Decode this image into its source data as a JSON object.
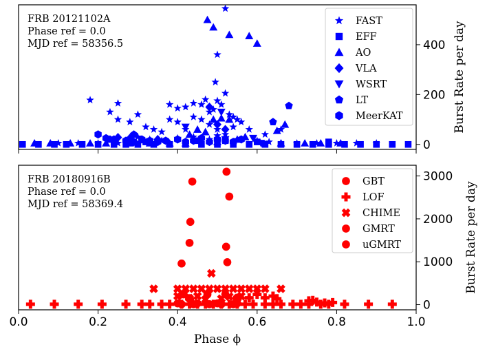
{
  "chart_data": [
    {
      "type": "scatter",
      "color": "#0000ff",
      "annotation": [
        "FRB 20121102A",
        "Phase ref = 0.0",
        "MJD ref = 58356.5"
      ],
      "xlabel": "",
      "ylabel": "Burst Rate per day",
      "xlim": [
        0.0,
        1.0
      ],
      "ylim": [
        -20,
        560
      ],
      "yticks": [
        0,
        200,
        400
      ],
      "legend_position": "top-right",
      "series": [
        {
          "name": "FAST",
          "marker": "star",
          "points": [
            [
              0.52,
              545
            ],
            [
              0.5,
              360
            ],
            [
              0.495,
              250
            ],
            [
              0.52,
              205
            ],
            [
              0.18,
              178
            ],
            [
              0.25,
              165
            ],
            [
              0.38,
              160
            ],
            [
              0.4,
              145
            ],
            [
              0.42,
              150
            ],
            [
              0.44,
              165
            ],
            [
              0.46,
              160
            ],
            [
              0.47,
              180
            ],
            [
              0.48,
              130
            ],
            [
              0.49,
              140
            ],
            [
              0.5,
              175
            ],
            [
              0.51,
              160
            ],
            [
              0.53,
              120
            ],
            [
              0.54,
              110
            ],
            [
              0.55,
              100
            ],
            [
              0.56,
              90
            ],
            [
              0.58,
              60
            ],
            [
              0.62,
              40
            ],
            [
              0.64,
              90
            ],
            [
              0.66,
              60
            ],
            [
              0.23,
              130
            ],
            [
              0.25,
              100
            ],
            [
              0.28,
              90
            ],
            [
              0.3,
              120
            ],
            [
              0.32,
              70
            ],
            [
              0.34,
              60
            ],
            [
              0.36,
              50
            ],
            [
              0.38,
              100
            ],
            [
              0.4,
              90
            ],
            [
              0.42,
              60
            ],
            [
              0.44,
              110
            ],
            [
              0.46,
              100
            ],
            [
              0.48,
              80
            ],
            [
              0.5,
              60
            ],
            [
              0.52,
              40
            ],
            [
              0.54,
              70
            ],
            [
              0.3,
              30
            ],
            [
              0.33,
              20
            ],
            [
              0.36,
              15
            ],
            [
              0.4,
              25
            ],
            [
              0.44,
              30
            ],
            [
              0.48,
              20
            ],
            [
              0.5,
              35
            ],
            [
              0.55,
              20
            ],
            [
              0.6,
              15
            ],
            [
              0.63,
              10
            ],
            [
              0.1,
              5
            ],
            [
              0.15,
              5
            ],
            [
              0.2,
              5
            ],
            [
              0.25,
              5
            ],
            [
              0.7,
              5
            ],
            [
              0.75,
              5
            ],
            [
              0.8,
              5
            ],
            [
              0.85,
              5
            ],
            [
              0.9,
              5
            ]
          ]
        },
        {
          "name": "EFF",
          "marker": "square",
          "points": [
            [
              0.01,
              0
            ],
            [
              0.05,
              0
            ],
            [
              0.09,
              0
            ],
            [
              0.12,
              0
            ],
            [
              0.16,
              0
            ],
            [
              0.2,
              0
            ],
            [
              0.24,
              0
            ],
            [
              0.27,
              0
            ],
            [
              0.3,
              0
            ],
            [
              0.34,
              0
            ],
            [
              0.38,
              0
            ],
            [
              0.42,
              0
            ],
            [
              0.46,
              0
            ],
            [
              0.5,
              0
            ],
            [
              0.54,
              0
            ],
            [
              0.58,
              0
            ],
            [
              0.62,
              0
            ],
            [
              0.66,
              0
            ],
            [
              0.7,
              0
            ],
            [
              0.74,
              0
            ],
            [
              0.78,
              0
            ],
            [
              0.82,
              0
            ],
            [
              0.86,
              0
            ],
            [
              0.9,
              0
            ],
            [
              0.94,
              0
            ],
            [
              0.98,
              0
            ],
            [
              0.78,
              10
            ],
            [
              0.32,
              10
            ],
            [
              0.45,
              15
            ],
            [
              0.52,
              15
            ],
            [
              0.6,
              10
            ]
          ]
        },
        {
          "name": "AO",
          "marker": "triangle-up",
          "points": [
            [
              0.475,
              500
            ],
            [
              0.49,
              470
            ],
            [
              0.53,
              440
            ],
            [
              0.58,
              435
            ],
            [
              0.6,
              405
            ],
            [
              0.5,
              10
            ],
            [
              0.55,
              20
            ],
            [
              0.47,
              50
            ],
            [
              0.49,
              100
            ],
            [
              0.51,
              105
            ],
            [
              0.53,
              100
            ],
            [
              0.45,
              60
            ],
            [
              0.43,
              40
            ],
            [
              0.57,
              30
            ],
            [
              0.65,
              55
            ],
            [
              0.67,
              80
            ],
            [
              0.04,
              5
            ],
            [
              0.08,
              5
            ],
            [
              0.13,
              5
            ],
            [
              0.18,
              5
            ],
            [
              0.22,
              5
            ],
            [
              0.28,
              5
            ],
            [
              0.33,
              5
            ],
            [
              0.38,
              5
            ],
            [
              0.42,
              5
            ],
            [
              0.66,
              5
            ],
            [
              0.72,
              5
            ],
            [
              0.76,
              5
            ],
            [
              0.81,
              5
            ]
          ]
        },
        {
          "name": "VLA",
          "marker": "diamond",
          "points": [
            [
              0.25,
              28
            ],
            [
              0.28,
              25
            ],
            [
              0.48,
              150
            ],
            [
              0.5,
              80
            ],
            [
              0.52,
              60
            ],
            [
              0.35,
              20
            ]
          ]
        },
        {
          "name": "WSRT",
          "marker": "triangle-down",
          "points": [
            [
              0.42,
              70
            ],
            [
              0.51,
              130
            ],
            [
              0.59,
              25
            ],
            [
              0.52,
              20
            ],
            [
              0.61,
              5
            ]
          ]
        },
        {
          "name": "LT",
          "marker": "pentagon",
          "points": [
            [
              0.68,
              155
            ],
            [
              0.64,
              90
            ],
            [
              0.23,
              20
            ],
            [
              0.29,
              40
            ]
          ]
        },
        {
          "name": "MeerKAT",
          "marker": "hexagon",
          "points": [
            [
              0.2,
              40
            ],
            [
              0.22,
              25
            ],
            [
              0.24,
              20
            ],
            [
              0.27,
              15
            ],
            [
              0.29,
              10
            ],
            [
              0.31,
              20
            ],
            [
              0.33,
              15
            ],
            [
              0.35,
              10
            ],
            [
              0.37,
              15
            ],
            [
              0.4,
              20
            ],
            [
              0.42,
              10
            ],
            [
              0.44,
              15
            ],
            [
              0.46,
              25
            ],
            [
              0.48,
              10
            ],
            [
              0.5,
              20
            ],
            [
              0.52,
              15
            ],
            [
              0.54,
              10
            ],
            [
              0.56,
              20
            ]
          ]
        }
      ]
    },
    {
      "type": "scatter",
      "color": "#ff0000",
      "annotation": [
        "FRB 20180916B",
        "Phase ref = 0.0",
        "MJD ref = 58369.4"
      ],
      "xlabel": "Phase ϕ",
      "ylabel": "Burst Rate per day",
      "xlim": [
        0.0,
        1.0
      ],
      "ylim": [
        -120,
        3250
      ],
      "yticks": [
        0,
        1000,
        2000,
        3000
      ],
      "xticks": [
        "0.0",
        "0.2",
        "0.4",
        "0.6",
        "0.8",
        "1.0"
      ],
      "legend_position": "top-right",
      "series": [
        {
          "name": "GBT",
          "marker": "circle",
          "points": [
            [
              0.523,
              3100
            ],
            [
              0.437,
              2870
            ],
            [
              0.53,
              2520
            ],
            [
              0.432,
              1930
            ],
            [
              0.43,
              1440
            ],
            [
              0.522,
              1350
            ],
            [
              0.525,
              990
            ],
            [
              0.41,
              960
            ],
            [
              0.415,
              240
            ],
            [
              0.475,
              240
            ],
            [
              0.52,
              240
            ]
          ]
        },
        {
          "name": "LOF",
          "marker": "plus",
          "points": [
            [
              0.03,
              10
            ],
            [
              0.09,
              10
            ],
            [
              0.15,
              10
            ],
            [
              0.21,
              10
            ],
            [
              0.27,
              10
            ],
            [
              0.31,
              10
            ],
            [
              0.33,
              10
            ],
            [
              0.36,
              10
            ],
            [
              0.38,
              10
            ],
            [
              0.41,
              10
            ],
            [
              0.43,
              10
            ],
            [
              0.45,
              10
            ],
            [
              0.47,
              10
            ],
            [
              0.49,
              10
            ],
            [
              0.51,
              10
            ],
            [
              0.53,
              10
            ],
            [
              0.55,
              10
            ],
            [
              0.57,
              10
            ],
            [
              0.59,
              10
            ],
            [
              0.62,
              10
            ],
            [
              0.64,
              10
            ],
            [
              0.66,
              10
            ],
            [
              0.69,
              10
            ],
            [
              0.71,
              10
            ],
            [
              0.73,
              10
            ],
            [
              0.76,
              10
            ],
            [
              0.78,
              10
            ],
            [
              0.82,
              10
            ],
            [
              0.88,
              10
            ],
            [
              0.94,
              10
            ],
            [
              0.55,
              150
            ],
            [
              0.58,
              160
            ],
            [
              0.6,
              240
            ],
            [
              0.62,
              160
            ],
            [
              0.64,
              200
            ],
            [
              0.65,
              140
            ],
            [
              0.73,
              90
            ],
            [
              0.74,
              100
            ],
            [
              0.75,
              60
            ],
            [
              0.77,
              40
            ],
            [
              0.79,
              50
            ],
            [
              0.43,
              140
            ]
          ]
        },
        {
          "name": "CHIME",
          "marker": "cross",
          "points": [
            [
              0.34,
              370
            ],
            [
              0.4,
              370
            ],
            [
              0.42,
              370
            ],
            [
              0.44,
              370
            ],
            [
              0.46,
              370
            ],
            [
              0.48,
              370
            ],
            [
              0.5,
              370
            ],
            [
              0.52,
              370
            ],
            [
              0.54,
              370
            ],
            [
              0.56,
              370
            ],
            [
              0.58,
              370
            ],
            [
              0.6,
              370
            ],
            [
              0.62,
              370
            ],
            [
              0.66,
              370
            ],
            [
              0.485,
              730
            ],
            [
              0.4,
              200
            ],
            [
              0.43,
              150
            ],
            [
              0.47,
              120
            ],
            [
              0.51,
              140
            ],
            [
              0.55,
              150
            ],
            [
              0.56,
              200
            ],
            [
              0.53,
              190
            ],
            [
              0.45,
              200
            ]
          ]
        },
        {
          "name": "GMRT",
          "marker": "circle",
          "points": [
            [
              0.41,
              10
            ],
            [
              0.44,
              10
            ],
            [
              0.48,
              10
            ],
            [
              0.51,
              10
            ],
            [
              0.54,
              10
            ]
          ]
        },
        {
          "name": "uGMRT",
          "marker": "circle",
          "points": [
            [
              0.4,
              30
            ],
            [
              0.45,
              30
            ],
            [
              0.5,
              30
            ],
            [
              0.55,
              30
            ]
          ]
        }
      ]
    }
  ]
}
